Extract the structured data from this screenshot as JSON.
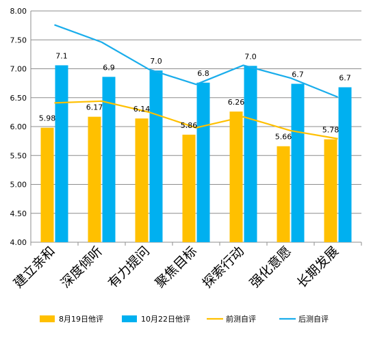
{
  "chart_data": {
    "type": "bar",
    "categories": [
      "建立亲和",
      "深度倾听",
      "有力提问",
      "聚焦目标",
      "探索行动",
      "强化意愿",
      "长期发展"
    ],
    "ylim": [
      4.0,
      8.0
    ],
    "yticks": [
      "4.00",
      "4.50",
      "5.00",
      "5.50",
      "6.00",
      "6.50",
      "7.00",
      "7.50",
      "8.00"
    ],
    "grid": true,
    "legend_position": "bottom",
    "bar_series": [
      {
        "name": "8月19日他评",
        "color": "#FFC000",
        "values": [
          5.98,
          6.17,
          6.14,
          5.86,
          6.26,
          5.66,
          5.78
        ],
        "labels": [
          "5.98",
          "6.17",
          "6.14",
          "5.86",
          "6.26",
          "5.66",
          "5.78"
        ]
      },
      {
        "name": "10月22日他评",
        "color": "#00B0F0",
        "values": [
          7.06,
          6.86,
          6.97,
          6.76,
          7.05,
          6.74,
          6.68
        ],
        "labels": [
          "7.1",
          "6.9",
          "7.0",
          "6.8",
          "7.0",
          "6.7",
          "6.7"
        ]
      }
    ],
    "line_series": [
      {
        "name": "前测自评",
        "color": "#FFC000",
        "values": [
          6.41,
          6.44,
          6.25,
          5.98,
          6.17,
          5.93,
          5.79
        ]
      },
      {
        "name": "后测自评",
        "color": "#1AADEB",
        "values": [
          7.76,
          7.46,
          6.99,
          6.73,
          7.06,
          6.84,
          6.51
        ]
      }
    ]
  }
}
